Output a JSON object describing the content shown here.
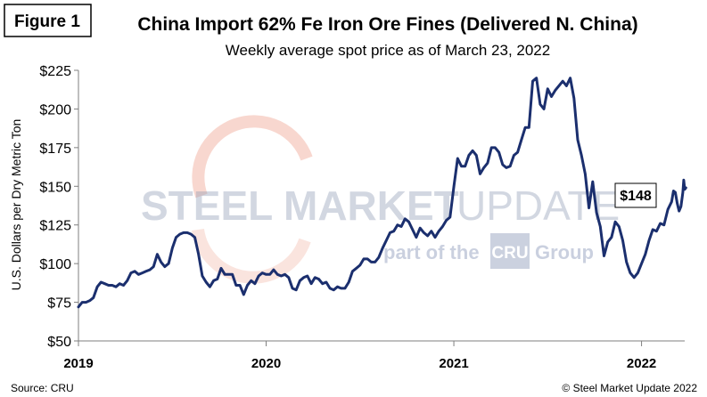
{
  "figure_label": "Figure 1",
  "watermark": {
    "word1": "STEEL",
    "word2": "MARKET",
    "word3": "UPDATE",
    "tagline_pre": "part of the",
    "tagline_brand": "CRU",
    "tagline_post": "Group"
  },
  "footer": {
    "source": "Source: CRU",
    "copyright": "© Steel Market Update 2022"
  },
  "colors": {
    "line": "#1b2f6e",
    "axis": "#7f7f7f",
    "watermark_arc": "#e8826a"
  },
  "chart_data": {
    "type": "line",
    "title": "China Import 62% Fe Iron Ore Fines (Delivered N. China)",
    "subtitle": "Weekly average spot price as of March 23, 2022",
    "xlabel": "",
    "ylabel": "U.S. Dollars per Dry Metric Ton",
    "ylim": [
      50,
      225
    ],
    "yticks": [
      50,
      75,
      100,
      125,
      150,
      175,
      200,
      225
    ],
    "ytick_labels": [
      "$50",
      "$75",
      "$100",
      "$125",
      "$150",
      "$175",
      "$200",
      "$225"
    ],
    "xlim": [
      2019.0,
      2022.23
    ],
    "xticks": [
      2019,
      2020,
      2021,
      2022
    ],
    "xtick_labels": [
      "2019",
      "2020",
      "2021",
      "2022"
    ],
    "grid": false,
    "annotation": {
      "label": "$148",
      "x": 2022.2,
      "y": 148
    },
    "series": [
      {
        "name": "China Import 62% Fe Iron Ore Fines",
        "points": [
          [
            2019.0,
            72
          ],
          [
            2019.02,
            75
          ],
          [
            2019.04,
            75
          ],
          [
            2019.06,
            76
          ],
          [
            2019.08,
            78
          ],
          [
            2019.1,
            85
          ],
          [
            2019.12,
            88
          ],
          [
            2019.14,
            87
          ],
          [
            2019.16,
            86
          ],
          [
            2019.18,
            86
          ],
          [
            2019.2,
            85
          ],
          [
            2019.22,
            87
          ],
          [
            2019.24,
            86
          ],
          [
            2019.26,
            89
          ],
          [
            2019.28,
            94
          ],
          [
            2019.3,
            95
          ],
          [
            2019.32,
            93
          ],
          [
            2019.34,
            94
          ],
          [
            2019.36,
            95
          ],
          [
            2019.38,
            96
          ],
          [
            2019.4,
            98
          ],
          [
            2019.42,
            106
          ],
          [
            2019.44,
            101
          ],
          [
            2019.46,
            98
          ],
          [
            2019.48,
            100
          ],
          [
            2019.5,
            110
          ],
          [
            2019.52,
            117
          ],
          [
            2019.54,
            119
          ],
          [
            2019.56,
            120
          ],
          [
            2019.58,
            120
          ],
          [
            2019.6,
            119
          ],
          [
            2019.62,
            117
          ],
          [
            2019.64,
            106
          ],
          [
            2019.66,
            92
          ],
          [
            2019.68,
            88
          ],
          [
            2019.7,
            85
          ],
          [
            2019.72,
            89
          ],
          [
            2019.74,
            90
          ],
          [
            2019.76,
            97
          ],
          [
            2019.78,
            93
          ],
          [
            2019.8,
            93
          ],
          [
            2019.82,
            93
          ],
          [
            2019.84,
            86
          ],
          [
            2019.86,
            86
          ],
          [
            2019.88,
            80
          ],
          [
            2019.9,
            86
          ],
          [
            2019.92,
            89
          ],
          [
            2019.94,
            87
          ],
          [
            2019.96,
            92
          ],
          [
            2019.98,
            94
          ],
          [
            2020.0,
            93
          ],
          [
            2020.02,
            93
          ],
          [
            2020.04,
            96
          ],
          [
            2020.06,
            93
          ],
          [
            2020.08,
            92
          ],
          [
            2020.1,
            93
          ],
          [
            2020.12,
            91
          ],
          [
            2020.14,
            84
          ],
          [
            2020.16,
            83
          ],
          [
            2020.18,
            89
          ],
          [
            2020.2,
            91
          ],
          [
            2020.22,
            92
          ],
          [
            2020.24,
            87
          ],
          [
            2020.26,
            91
          ],
          [
            2020.28,
            90
          ],
          [
            2020.3,
            87
          ],
          [
            2020.32,
            88
          ],
          [
            2020.34,
            84
          ],
          [
            2020.36,
            83
          ],
          [
            2020.38,
            85
          ],
          [
            2020.4,
            84
          ],
          [
            2020.42,
            84
          ],
          [
            2020.44,
            88
          ],
          [
            2020.46,
            95
          ],
          [
            2020.48,
            97
          ],
          [
            2020.5,
            99
          ],
          [
            2020.52,
            103
          ],
          [
            2020.54,
            103
          ],
          [
            2020.56,
            101
          ],
          [
            2020.58,
            101
          ],
          [
            2020.6,
            104
          ],
          [
            2020.62,
            110
          ],
          [
            2020.64,
            115
          ],
          [
            2020.66,
            120
          ],
          [
            2020.68,
            121
          ],
          [
            2020.7,
            125
          ],
          [
            2020.72,
            124
          ],
          [
            2020.74,
            129
          ],
          [
            2020.76,
            127
          ],
          [
            2020.78,
            122
          ],
          [
            2020.8,
            117
          ],
          [
            2020.82,
            123
          ],
          [
            2020.84,
            120
          ],
          [
            2020.86,
            118
          ],
          [
            2020.88,
            121
          ],
          [
            2020.9,
            117
          ],
          [
            2020.92,
            121
          ],
          [
            2020.94,
            124
          ],
          [
            2020.96,
            128
          ],
          [
            2020.98,
            130
          ],
          [
            2021.0,
            150
          ],
          [
            2021.02,
            168
          ],
          [
            2021.04,
            163
          ],
          [
            2021.06,
            163
          ],
          [
            2021.08,
            170
          ],
          [
            2021.1,
            173
          ],
          [
            2021.12,
            170
          ],
          [
            2021.14,
            158
          ],
          [
            2021.16,
            162
          ],
          [
            2021.18,
            165
          ],
          [
            2021.2,
            175
          ],
          [
            2021.22,
            175
          ],
          [
            2021.24,
            172
          ],
          [
            2021.26,
            164
          ],
          [
            2021.28,
            162
          ],
          [
            2021.3,
            163
          ],
          [
            2021.32,
            170
          ],
          [
            2021.34,
            172
          ],
          [
            2021.36,
            180
          ],
          [
            2021.38,
            188
          ],
          [
            2021.4,
            188
          ],
          [
            2021.42,
            218
          ],
          [
            2021.44,
            220
          ],
          [
            2021.46,
            203
          ],
          [
            2021.48,
            200
          ],
          [
            2021.5,
            213
          ],
          [
            2021.52,
            208
          ],
          [
            2021.54,
            212
          ],
          [
            2021.56,
            215
          ],
          [
            2021.58,
            218
          ],
          [
            2021.6,
            215
          ],
          [
            2021.62,
            220
          ],
          [
            2021.64,
            207
          ],
          [
            2021.66,
            180
          ],
          [
            2021.68,
            170
          ],
          [
            2021.7,
            158
          ],
          [
            2021.72,
            136
          ],
          [
            2021.74,
            153
          ],
          [
            2021.76,
            133
          ],
          [
            2021.78,
            124
          ],
          [
            2021.8,
            105
          ],
          [
            2021.82,
            114
          ],
          [
            2021.84,
            117
          ],
          [
            2021.86,
            127
          ],
          [
            2021.88,
            124
          ],
          [
            2021.9,
            115
          ],
          [
            2021.92,
            101
          ],
          [
            2021.94,
            94
          ],
          [
            2021.96,
            91
          ],
          [
            2021.98,
            94
          ],
          [
            2022.0,
            100
          ],
          [
            2022.02,
            106
          ],
          [
            2022.04,
            115
          ],
          [
            2022.06,
            122
          ],
          [
            2022.08,
            121
          ],
          [
            2022.1,
            126
          ],
          [
            2022.12,
            125
          ],
          [
            2022.14,
            135
          ],
          [
            2022.16,
            140
          ],
          [
            2022.17,
            147
          ],
          [
            2022.18,
            146
          ],
          [
            2022.19,
            139
          ],
          [
            2022.2,
            134
          ],
          [
            2022.21,
            137
          ],
          [
            2022.22,
            146
          ],
          [
            2022.225,
            154
          ],
          [
            2022.23,
            148
          ],
          [
            2022.236,
            149
          ]
        ]
      }
    ]
  }
}
